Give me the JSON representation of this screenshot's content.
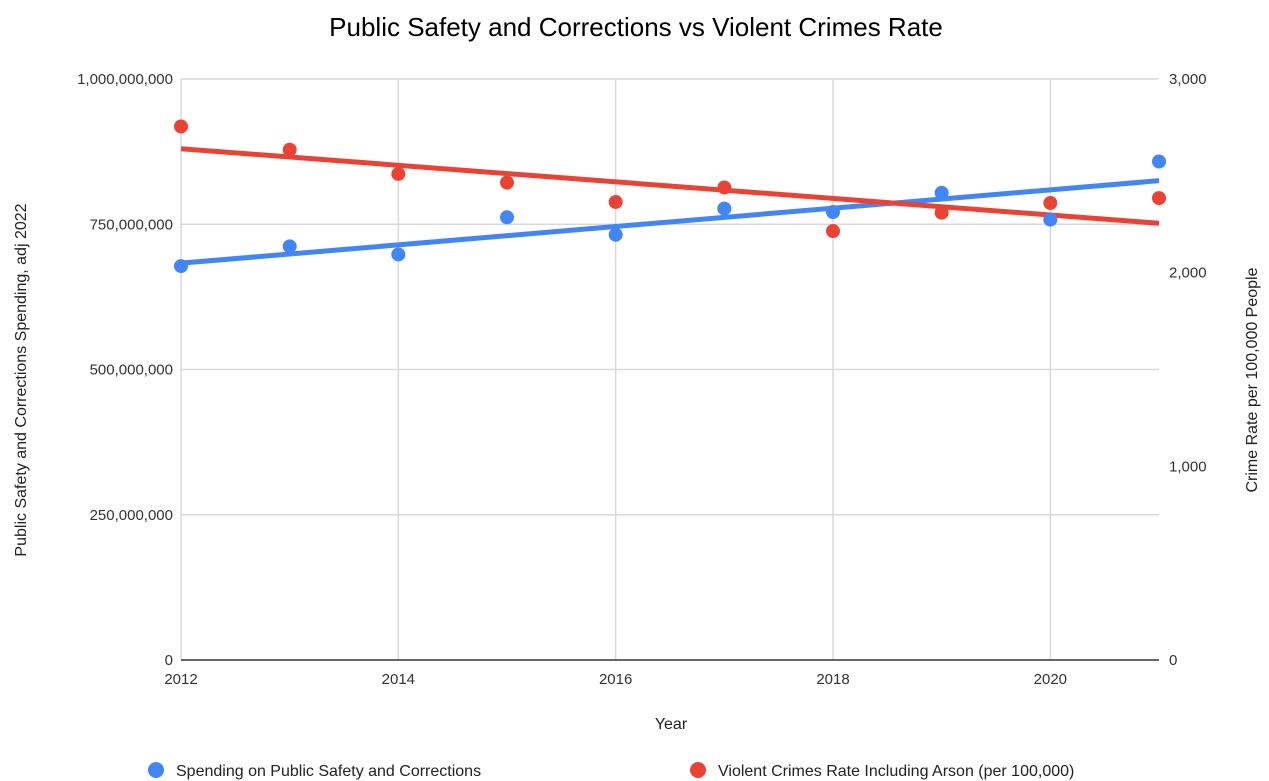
{
  "chart_data": {
    "type": "scatter",
    "title": "Public Safety and Corrections vs Violent Crimes Rate",
    "xlabel": "Year",
    "ylabel_left": "Public Safety and Corrections Spending, adj 2022",
    "ylabel_right": "Crime Rate per 100,000 People",
    "x_ticks": [
      "2012",
      "2014",
      "2016",
      "2018",
      "2020"
    ],
    "y_left_ticks": [
      "0",
      "250,000,000",
      "500,000,000",
      "750,000,000",
      "1,000,000,000"
    ],
    "y_right_ticks": [
      "0",
      "1,000",
      "2,000",
      "3,000"
    ],
    "xlim": [
      2012,
      2021
    ],
    "ylim_left": [
      0,
      1000000000
    ],
    "ylim_right": [
      0,
      3000
    ],
    "grid": true,
    "legend_position": "bottom",
    "series": [
      {
        "name": "Spending on Public Safety and Corrections",
        "axis": "left",
        "color": "#4285F4",
        "x": [
          2012,
          2013,
          2014,
          2015,
          2016,
          2017,
          2018,
          2019,
          2020,
          2021
        ],
        "y": [
          678000000,
          712000000,
          698000000,
          762000000,
          732000000,
          777000000,
          771000000,
          804000000,
          758000000,
          858000000
        ],
        "trendline": {
          "start": [
            2012,
            683000000
          ],
          "end": [
            2021,
            825000000
          ]
        }
      },
      {
        "name": "Violent Crimes Rate Including Arson (per 100,000)",
        "axis": "right",
        "color": "#EA4335",
        "x": [
          2012,
          2013,
          2014,
          2015,
          2016,
          2017,
          2018,
          2019,
          2020,
          2021
        ],
        "y": [
          2755,
          2635,
          2510,
          2465,
          2365,
          2440,
          2215,
          2310,
          2360,
          2385
        ],
        "trendline": {
          "start": [
            2012,
            2640
          ],
          "end": [
            2021,
            2255
          ]
        }
      }
    ]
  }
}
